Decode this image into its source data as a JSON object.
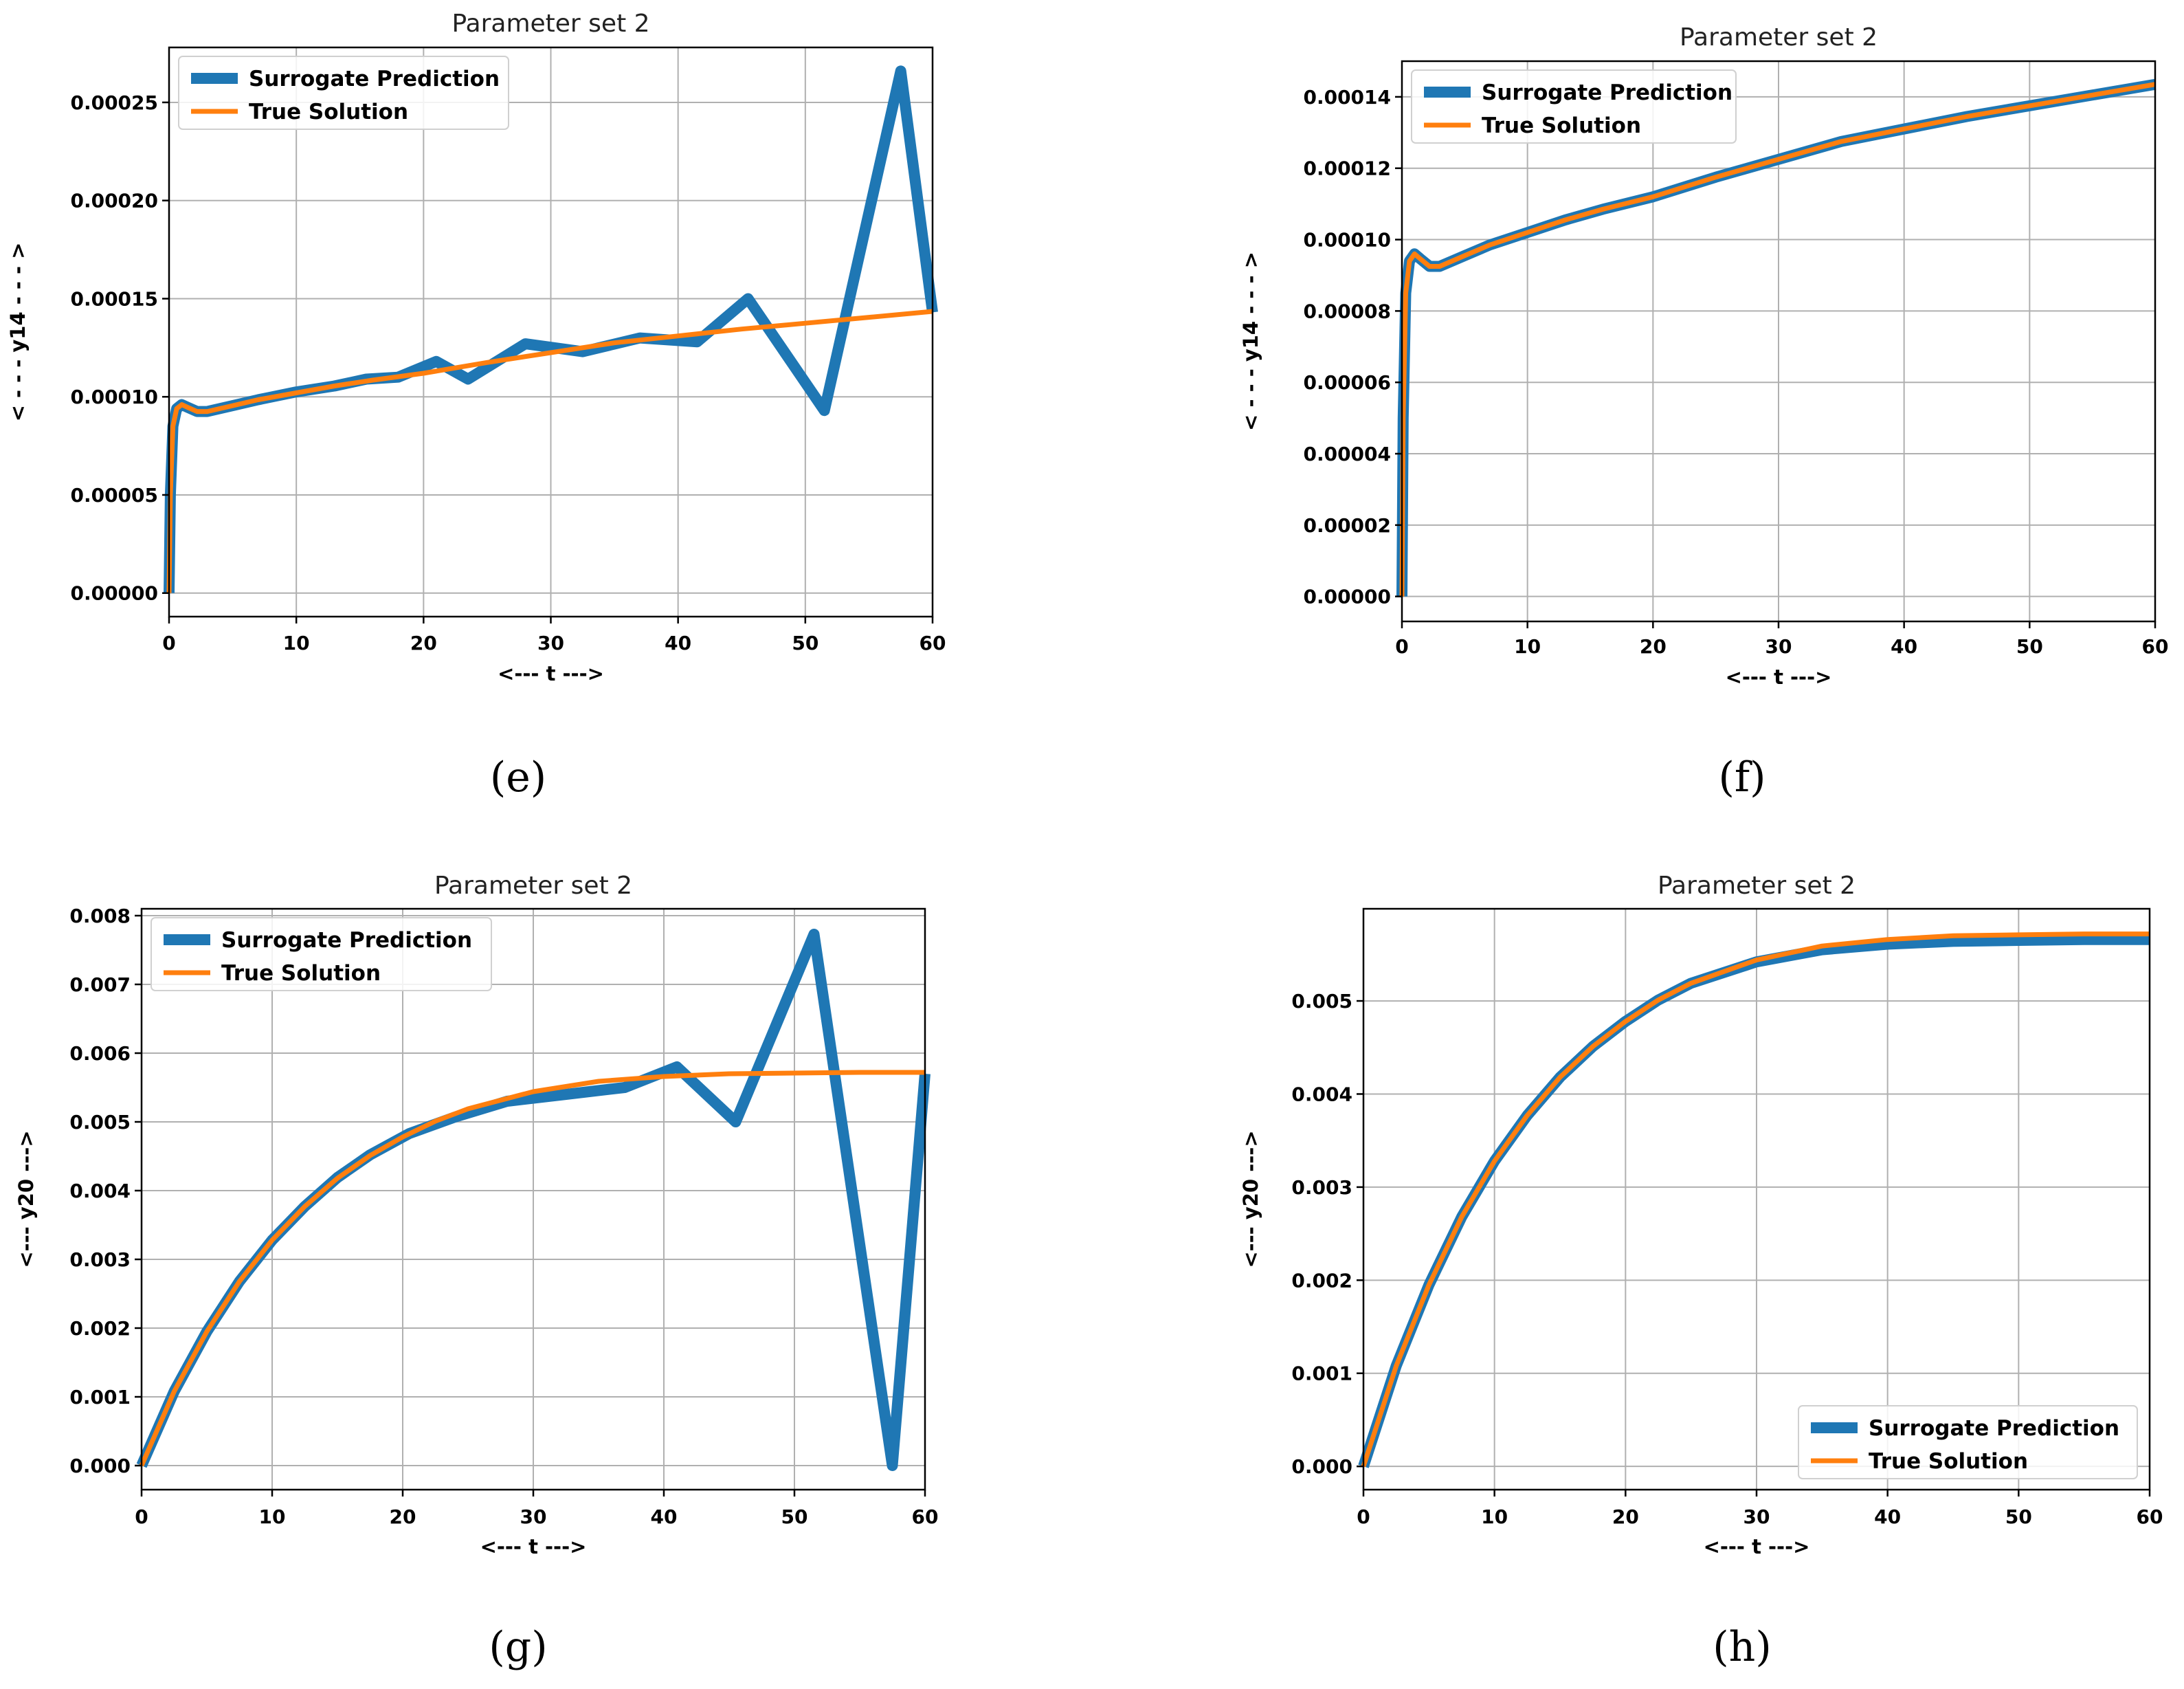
{
  "chart_data": [
    {
      "id": "e",
      "type": "line",
      "title": "Parameter set 2",
      "xlabel": "<---  t  --->",
      "ylabel": "< - - - y14 - - - >",
      "xlim": [
        0,
        60
      ],
      "ylim": [
        -1.2e-05,
        0.000278
      ],
      "xticks": [
        0,
        10,
        20,
        30,
        40,
        50,
        60
      ],
      "yticks": [
        0,
        5e-05,
        0.0001,
        0.00015,
        0.0002,
        0.00025
      ],
      "ytick_labels": [
        "0.00000",
        "0.00005",
        "0.00010",
        "0.00015",
        "0.00020",
        "0.00025"
      ],
      "legend_position": "top-left",
      "caption": "(e)",
      "series": [
        {
          "name": "Surrogate Prediction",
          "color": "#1f77b4",
          "x": [
            0,
            0.1,
            0.3,
            0.6,
            1.0,
            1.5,
            2.2,
            3.0,
            5.0,
            7.0,
            10.0,
            13.0,
            15.5,
            18.0,
            21.0,
            23.5,
            28.0,
            32.5,
            37.0,
            41.5,
            45.5,
            51.5,
            57.5,
            60.0
          ],
          "y": [
            0.0,
            5e-05,
            8.5e-05,
            9.4e-05,
            9.6e-05,
            9.45e-05,
            9.25e-05,
            9.25e-05,
            9.55e-05,
            9.85e-05,
            0.0001025,
            0.0001055,
            0.000109,
            0.00011,
            0.000118,
            0.000109,
            0.000127,
            0.000123,
            0.00013,
            0.000128,
            0.00015,
            9.3e-05,
            0.000266,
            0.000143
          ]
        },
        {
          "name": "True Solution",
          "color": "#ff7f0e",
          "x": [
            0,
            0.1,
            0.3,
            0.6,
            1.0,
            1.5,
            2.2,
            3.0,
            5.0,
            7.0,
            10.0,
            13.0,
            16.0,
            20.0,
            25.0,
            30.0,
            35.0,
            40.0,
            45.0,
            50.0,
            55.0,
            60.0
          ],
          "y": [
            0.0,
            5e-05,
            8.5e-05,
            9.4e-05,
            9.6e-05,
            9.45e-05,
            9.25e-05,
            9.25e-05,
            9.55e-05,
            9.85e-05,
            0.000102,
            0.0001055,
            0.0001085,
            0.000112,
            0.0001175,
            0.0001225,
            0.0001275,
            0.000131,
            0.0001345,
            0.0001375,
            0.0001405,
            0.0001435
          ]
        }
      ]
    },
    {
      "id": "f",
      "type": "line",
      "title": "Parameter set 2",
      "xlabel": "<---  t  --->",
      "ylabel": "< - - - y14 - - - >",
      "xlim": [
        0,
        60
      ],
      "ylim": [
        -7e-06,
        0.00015
      ],
      "xticks": [
        0,
        10,
        20,
        30,
        40,
        50,
        60
      ],
      "yticks": [
        0,
        2e-05,
        4e-05,
        6e-05,
        8e-05,
        0.0001,
        0.00012,
        0.00014
      ],
      "ytick_labels": [
        "0.00000",
        "0.00002",
        "0.00004",
        "0.00006",
        "0.00008",
        "0.00010",
        "0.00012",
        "0.00014"
      ],
      "legend_position": "top-left",
      "caption": "(f)",
      "series": [
        {
          "name": "Surrogate Prediction",
          "color": "#1f77b4",
          "x": [
            0,
            0.1,
            0.3,
            0.6,
            1.0,
            1.5,
            2.2,
            3.0,
            5.0,
            7.0,
            10.0,
            13.0,
            16.0,
            20.0,
            25.0,
            30.0,
            35.0,
            40.0,
            45.0,
            50.0,
            55.0,
            60.0
          ],
          "y": [
            0.0,
            5e-05,
            8.5e-05,
            9.4e-05,
            9.6e-05,
            9.45e-05,
            9.25e-05,
            9.25e-05,
            9.55e-05,
            9.85e-05,
            0.000102,
            0.0001055,
            0.0001085,
            0.000112,
            0.0001175,
            0.0001225,
            0.0001275,
            0.000131,
            0.0001345,
            0.0001375,
            0.0001405,
            0.0001435
          ]
        },
        {
          "name": "True Solution",
          "color": "#ff7f0e",
          "x": [
            0,
            0.1,
            0.3,
            0.6,
            1.0,
            1.5,
            2.2,
            3.0,
            5.0,
            7.0,
            10.0,
            13.0,
            16.0,
            20.0,
            25.0,
            30.0,
            35.0,
            40.0,
            45.0,
            50.0,
            55.0,
            60.0
          ],
          "y": [
            0.0,
            5e-05,
            8.5e-05,
            9.4e-05,
            9.6e-05,
            9.45e-05,
            9.25e-05,
            9.25e-05,
            9.55e-05,
            9.85e-05,
            0.000102,
            0.0001055,
            0.0001085,
            0.000112,
            0.0001175,
            0.0001225,
            0.0001275,
            0.000131,
            0.0001345,
            0.0001375,
            0.0001405,
            0.0001435
          ]
        }
      ]
    },
    {
      "id": "g",
      "type": "line",
      "title": "Parameter set 2",
      "xlabel": "<---  t  --->",
      "ylabel": "<---  y20  --->",
      "xlim": [
        0,
        60
      ],
      "ylim": [
        -0.00035,
        0.0081
      ],
      "xticks": [
        0,
        10,
        20,
        30,
        40,
        50,
        60
      ],
      "yticks": [
        0,
        0.001,
        0.002,
        0.003,
        0.004,
        0.005,
        0.006,
        0.007,
        0.008
      ],
      "ytick_labels": [
        "0.000",
        "0.001",
        "0.002",
        "0.003",
        "0.004",
        "0.005",
        "0.006",
        "0.007",
        "0.008"
      ],
      "legend_position": "top-left",
      "caption": "(g)",
      "series": [
        {
          "name": "Surrogate Prediction",
          "color": "#1f77b4",
          "x": [
            0,
            2.5,
            5,
            7.5,
            10,
            12.5,
            15,
            17.5,
            20.5,
            24,
            28,
            32.5,
            37,
            41,
            45.5,
            51.5,
            57.5,
            60
          ],
          "y": [
            0.0,
            0.00108,
            0.00195,
            0.00268,
            0.00328,
            0.00377,
            0.00419,
            0.00452,
            0.00483,
            0.00507,
            0.0053,
            0.0054,
            0.0055,
            0.0058,
            0.005,
            0.00773,
            0.0,
            0.0057
          ]
        },
        {
          "name": "True Solution",
          "color": "#ff7f0e",
          "x": [
            0,
            2.5,
            5,
            7.5,
            10,
            12.5,
            15,
            17.5,
            20,
            22.5,
            25,
            30,
            35,
            40,
            45,
            50,
            55,
            60
          ],
          "y": [
            0.0,
            0.00108,
            0.00195,
            0.00268,
            0.00328,
            0.00377,
            0.00418,
            0.00451,
            0.00478,
            0.00501,
            0.00519,
            0.00544,
            0.00559,
            0.00566,
            0.0057,
            0.00571,
            0.00572,
            0.00572
          ]
        }
      ]
    },
    {
      "id": "h",
      "type": "line",
      "title": "Parameter set 2",
      "xlabel": "<---  t  --->",
      "ylabel": "<---  y20  --->",
      "xlim": [
        0,
        60
      ],
      "ylim": [
        -0.00025,
        0.00599
      ],
      "xticks": [
        0,
        10,
        20,
        30,
        40,
        50,
        60
      ],
      "yticks": [
        0,
        0.001,
        0.002,
        0.003,
        0.004,
        0.005
      ],
      "ytick_labels": [
        "0.000",
        "0.001",
        "0.002",
        "0.003",
        "0.004",
        "0.005"
      ],
      "legend_position": "bottom-right",
      "caption": "(h)",
      "series": [
        {
          "name": "Surrogate Prediction",
          "color": "#1f77b4",
          "x": [
            0,
            2.5,
            5,
            7.5,
            10,
            12.5,
            15,
            17.5,
            20,
            22.5,
            25,
            30,
            35,
            40,
            45,
            50,
            55,
            60
          ],
          "y": [
            0.0,
            0.00108,
            0.00195,
            0.00268,
            0.00328,
            0.00377,
            0.00418,
            0.00451,
            0.00478,
            0.00501,
            0.00519,
            0.00542,
            0.00555,
            0.00561,
            0.00564,
            0.00565,
            0.00566,
            0.00566
          ]
        },
        {
          "name": "True Solution",
          "color": "#ff7f0e",
          "x": [
            0,
            2.5,
            5,
            7.5,
            10,
            12.5,
            15,
            17.5,
            20,
            22.5,
            25,
            30,
            35,
            40,
            45,
            50,
            55,
            60
          ],
          "y": [
            0.0,
            0.00108,
            0.00195,
            0.00268,
            0.00328,
            0.00377,
            0.00418,
            0.00451,
            0.00478,
            0.00501,
            0.00519,
            0.00544,
            0.00559,
            0.00566,
            0.0057,
            0.00571,
            0.00572,
            0.00572
          ]
        }
      ]
    }
  ]
}
